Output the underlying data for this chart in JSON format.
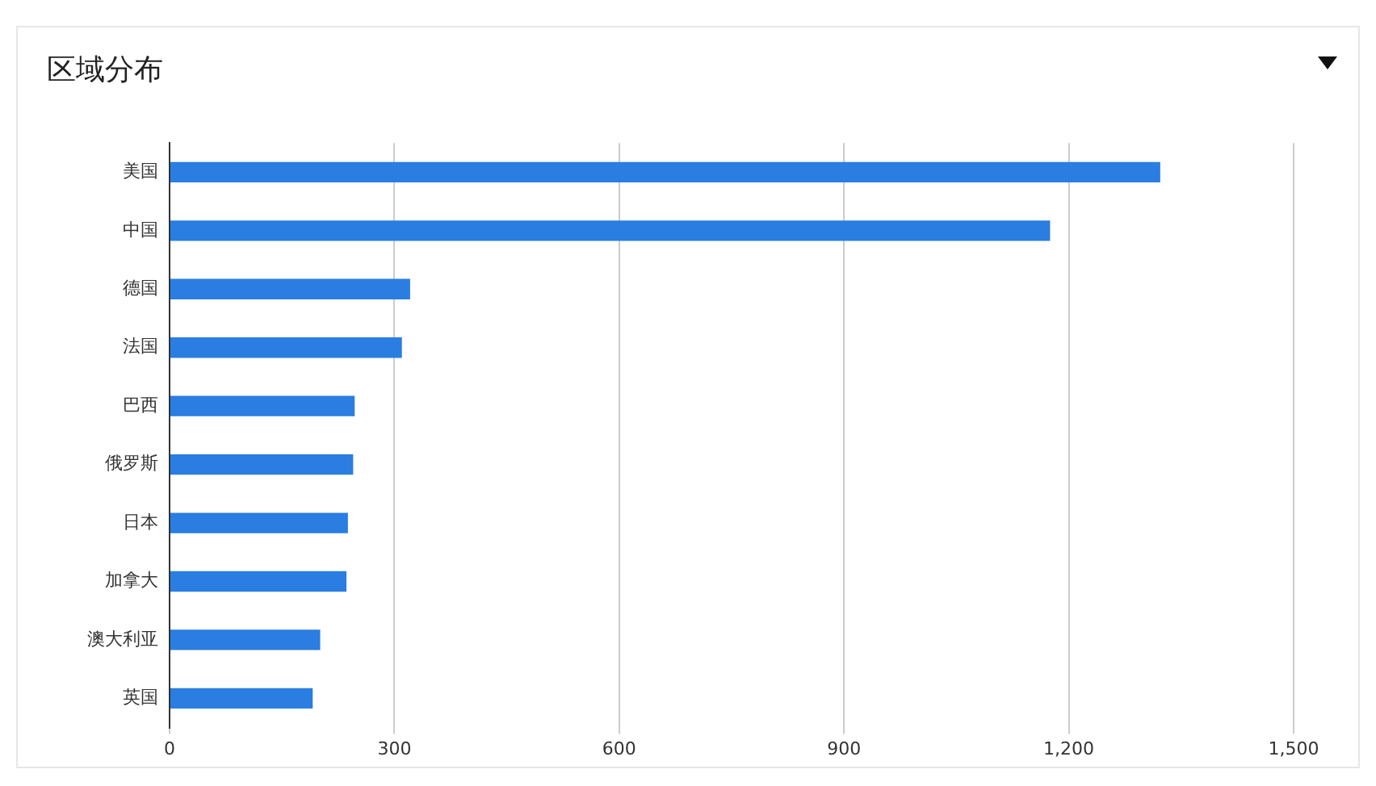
{
  "chart_data": {
    "type": "bar",
    "title": "区域分布",
    "orientation": "horizontal",
    "categories": [
      "美国",
      "中国",
      "德国",
      "法国",
      "巴西",
      "俄罗斯",
      "日本",
      "加拿大",
      "澳大利亚",
      "英国"
    ],
    "values": [
      1322,
      1175,
      321,
      310,
      247,
      245,
      238,
      236,
      201,
      191
    ],
    "color": "#2a7de1",
    "xlim": [
      0,
      1500
    ],
    "xticks": [
      0,
      {
        "value": 300,
        "label": "300"
      },
      {
        "value": 600,
        "label": "600"
      },
      {
        "value": 900,
        "label": "900"
      },
      {
        "value": 1200,
        "label": "1,200"
      },
      {
        "value": 1500,
        "label": "1,500"
      }
    ],
    "grid": "x",
    "legend": false
  }
}
